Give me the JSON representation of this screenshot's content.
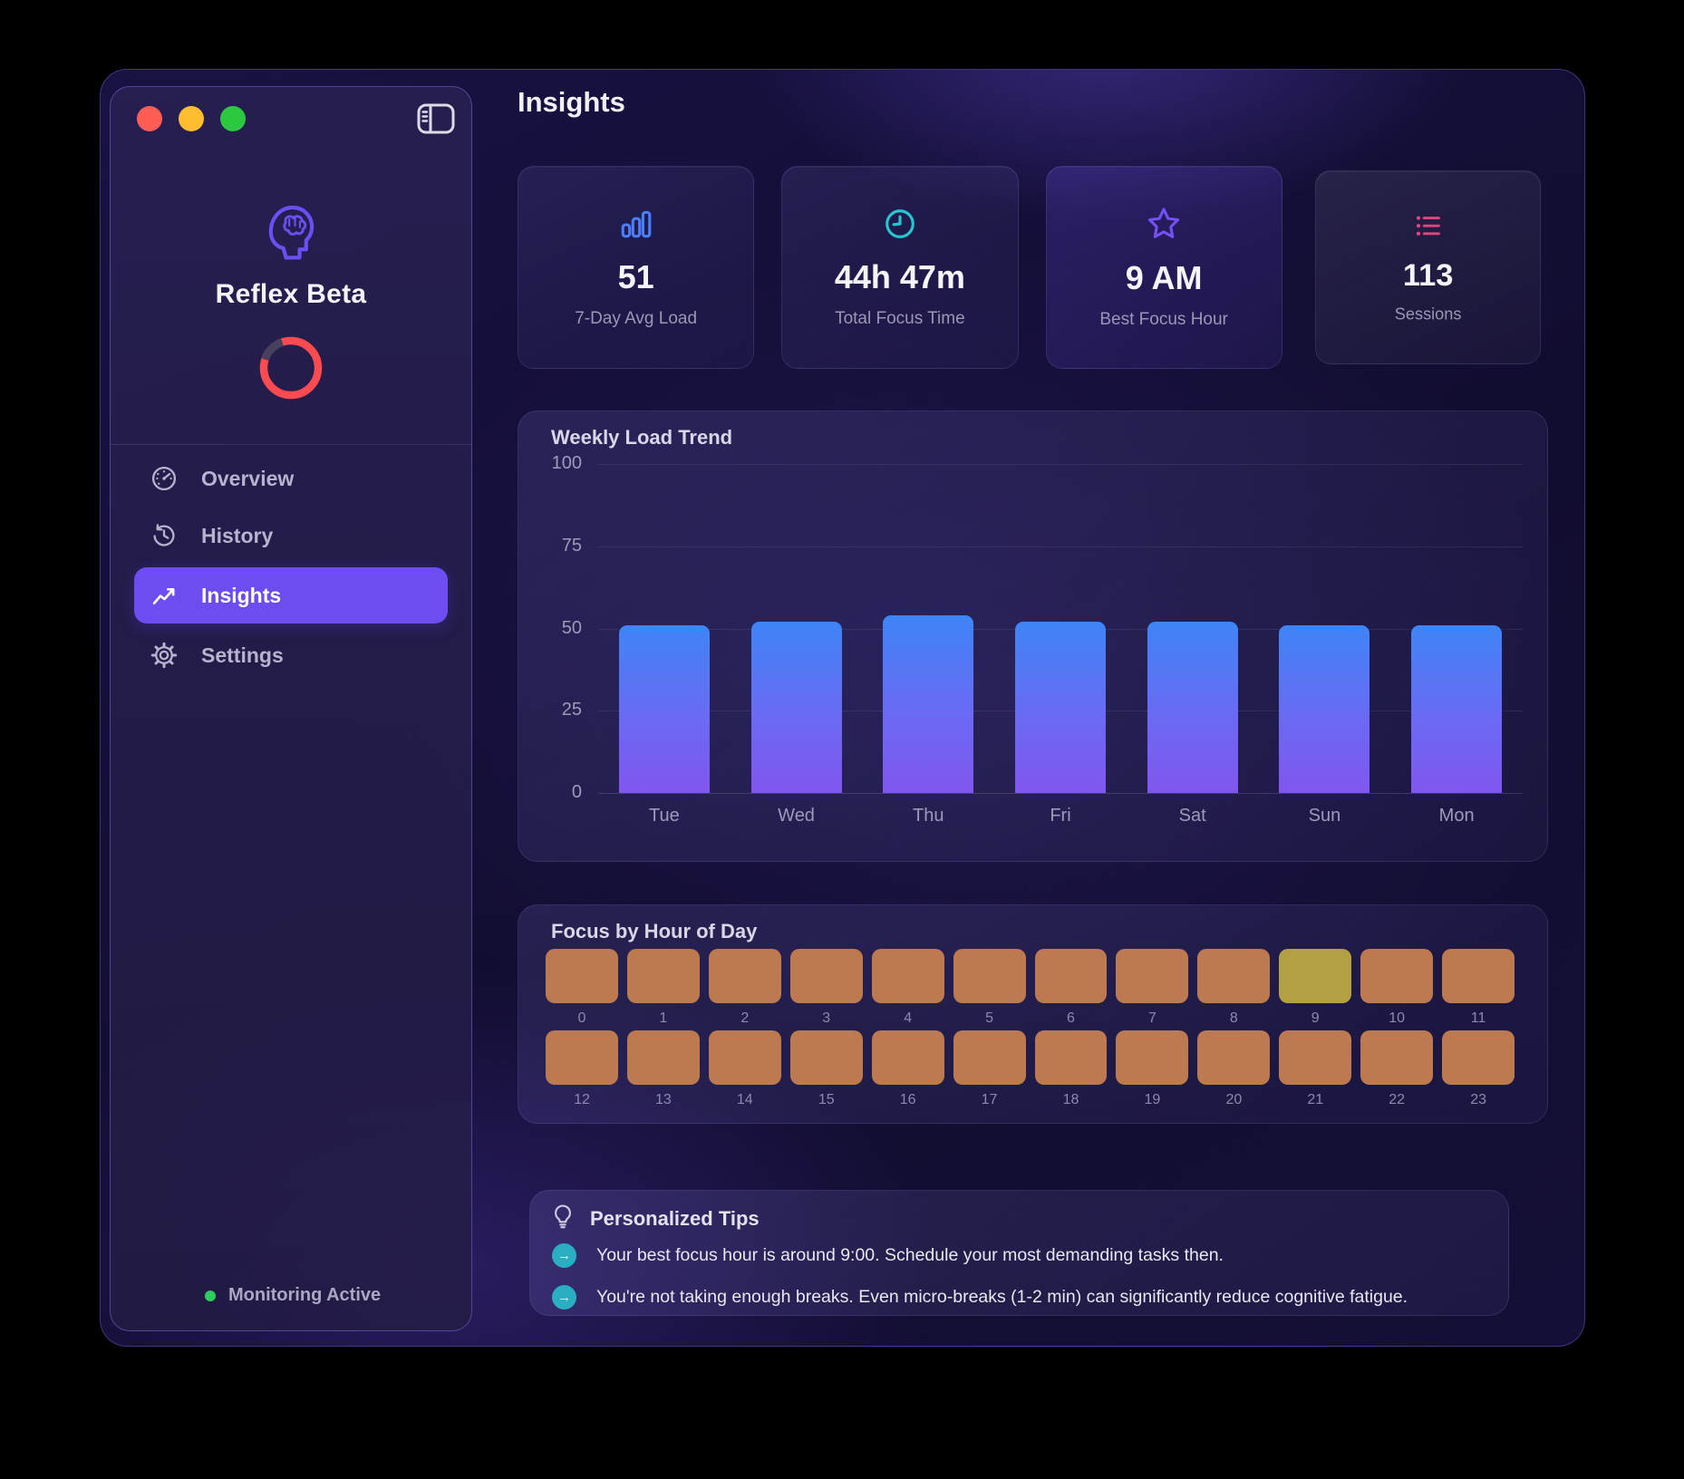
{
  "app": {
    "name": "Reflex Beta"
  },
  "window_controls": {
    "close_color": "#ff5d55",
    "minimize_color": "#ffbe2e",
    "zoom_color": "#2bc840"
  },
  "sidebar": {
    "nav": [
      {
        "label": "Overview",
        "icon": "gauge",
        "active": false
      },
      {
        "label": "History",
        "icon": "history",
        "active": false
      },
      {
        "label": "Insights",
        "icon": "line-chart",
        "active": true
      },
      {
        "label": "Settings",
        "icon": "gear",
        "active": false
      }
    ],
    "ring": {
      "progress": 0.85,
      "color": "#fb4a50",
      "track_color": "#454260"
    },
    "monitoring": {
      "label": "Monitoring Active",
      "dot_color": "#2ecc5e"
    }
  },
  "header": {
    "title": "Insights"
  },
  "stat_cards": [
    {
      "icon": "bar-chart",
      "accent": "#4a7df7",
      "value": "51",
      "label": "7-Day Avg Load"
    },
    {
      "icon": "clock",
      "accent": "#26c6d0",
      "value": "44h 47m",
      "label": "Total Focus Time"
    },
    {
      "icon": "star",
      "accent": "#7450f5",
      "value": "9 AM",
      "label": "Best Focus Hour"
    },
    {
      "icon": "list",
      "accent": "#e0457e",
      "value": "113",
      "label": "Sessions"
    }
  ],
  "chart_data": [
    {
      "type": "bar",
      "title": "Weekly Load Trend",
      "categories": [
        "Tue",
        "Wed",
        "Thu",
        "Fri",
        "Sat",
        "Sun",
        "Mon"
      ],
      "values": [
        51,
        52,
        54,
        52,
        52,
        51,
        51
      ],
      "ylim": [
        0,
        100
      ],
      "yticks": [
        100,
        75,
        50,
        25,
        0
      ],
      "grid": true,
      "bar_gradient": [
        "#3e85f6",
        "#8156ef"
      ]
    },
    {
      "type": "heatmap",
      "title": "Focus by Hour of Day",
      "categories": [
        0,
        1,
        2,
        3,
        4,
        5,
        6,
        7,
        8,
        9,
        10,
        11,
        12,
        13,
        14,
        15,
        16,
        17,
        18,
        19,
        20,
        21,
        22,
        23
      ],
      "highlight_hour": 9,
      "cell_color": "#bd7950",
      "highlight_color": "#b1a143"
    }
  ],
  "tips": {
    "title": "Personalized Tips",
    "items": [
      "Your best focus hour is around 9:00. Schedule your most demanding tasks then.",
      "You're not taking enough breaks. Even micro-breaks (1-2 min) can significantly reduce cognitive fatigue."
    ]
  }
}
